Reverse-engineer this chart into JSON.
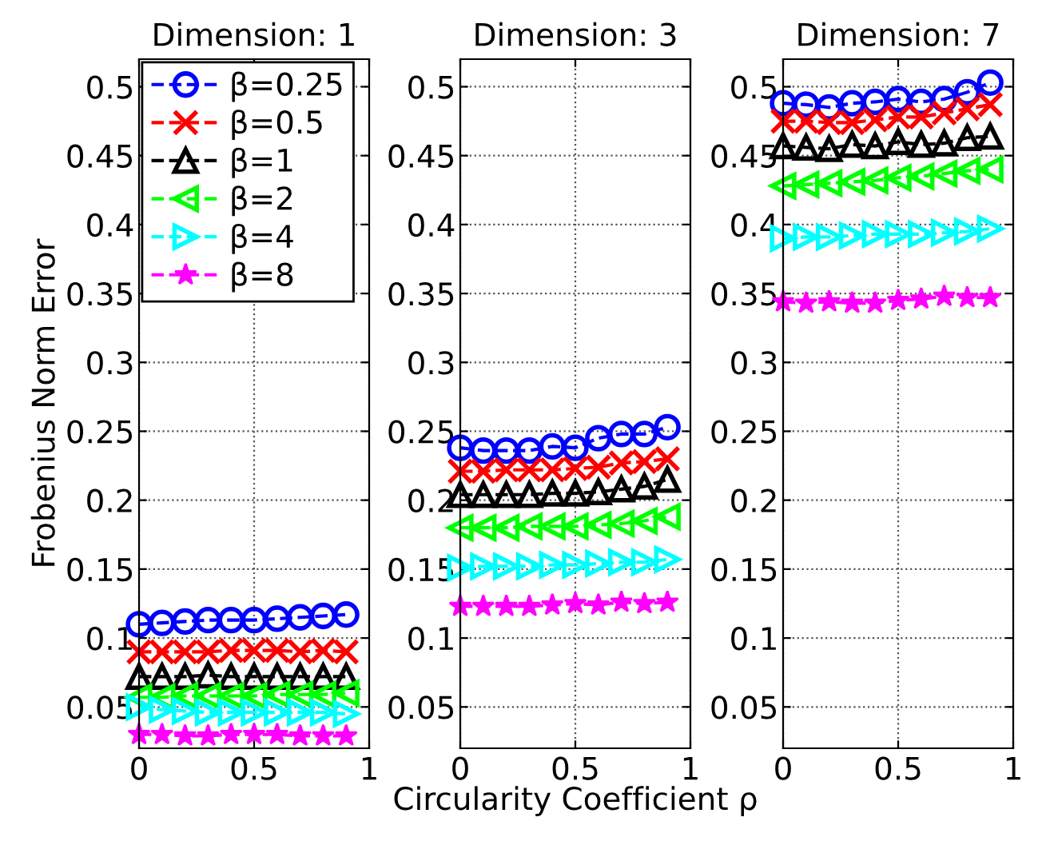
{
  "chart_data": [
    {
      "type": "line",
      "title": "Dimension: 1",
      "ylabel": "Frobenius Norm Error",
      "xlim": [
        0,
        1
      ],
      "xticks": [
        0,
        0.5,
        1
      ],
      "ylim": [
        0.02,
        0.52
      ],
      "yticks": [
        0.05,
        0.1,
        0.15,
        0.2,
        0.25,
        0.3,
        0.35,
        0.4,
        0.45,
        0.5
      ],
      "grid": true,
      "legend": "top left",
      "line_style": "dashed",
      "x": [
        0,
        0.1,
        0.2,
        0.3,
        0.4,
        0.5,
        0.6,
        0.7,
        0.8,
        0.9
      ],
      "series": [
        {
          "name": "β=0.25",
          "color": "#0000ff",
          "marker": "circle",
          "values": [
            0.11,
            0.111,
            0.112,
            0.113,
            0.113,
            0.113,
            0.114,
            0.115,
            0.116,
            0.117
          ]
        },
        {
          "name": "β=0.5",
          "color": "#ff0000",
          "marker": "cross",
          "values": [
            0.09,
            0.09,
            0.09,
            0.09,
            0.091,
            0.091,
            0.091,
            0.09,
            0.091,
            0.09
          ]
        },
        {
          "name": "β=1",
          "color": "#000000",
          "marker": "triangle",
          "values": [
            0.072,
            0.072,
            0.072,
            0.073,
            0.072,
            0.072,
            0.072,
            0.072,
            0.072,
            0.072
          ]
        },
        {
          "name": "β=2",
          "color": "#00ff00",
          "marker": "triangle-left",
          "values": [
            0.057,
            0.057,
            0.058,
            0.058,
            0.058,
            0.058,
            0.059,
            0.059,
            0.059,
            0.06
          ]
        },
        {
          "name": "β=4",
          "color": "#00ffff",
          "marker": "triangle-right",
          "values": [
            0.05,
            0.048,
            0.047,
            0.046,
            0.046,
            0.046,
            0.046,
            0.046,
            0.046,
            0.045
          ]
        },
        {
          "name": "β=8",
          "color": "#ff00ff",
          "marker": "star",
          "values": [
            0.03,
            0.03,
            0.029,
            0.029,
            0.03,
            0.03,
            0.03,
            0.029,
            0.029,
            0.029
          ]
        }
      ]
    },
    {
      "type": "line",
      "title": "Dimension: 3",
      "xlabel": "Circularity Coefficient ρ",
      "xlim": [
        0,
        1
      ],
      "xticks": [
        0,
        0.5,
        1
      ],
      "ylim": [
        0.02,
        0.52
      ],
      "yticks": [
        0.05,
        0.1,
        0.15,
        0.2,
        0.25,
        0.3,
        0.35,
        0.4,
        0.45,
        0.5
      ],
      "grid": true,
      "line_style": "dashed",
      "x": [
        0,
        0.1,
        0.2,
        0.3,
        0.4,
        0.5,
        0.6,
        0.7,
        0.8,
        0.9
      ],
      "series": [
        {
          "color": "#0000ff",
          "marker": "circle",
          "values": [
            0.238,
            0.236,
            0.236,
            0.236,
            0.239,
            0.238,
            0.245,
            0.248,
            0.248,
            0.253
          ]
        },
        {
          "color": "#ff0000",
          "marker": "cross",
          "values": [
            0.221,
            0.221,
            0.222,
            0.222,
            0.222,
            0.223,
            0.224,
            0.227,
            0.228,
            0.23
          ]
        },
        {
          "color": "#000000",
          "marker": "triangle",
          "values": [
            0.204,
            0.204,
            0.204,
            0.204,
            0.205,
            0.205,
            0.206,
            0.208,
            0.21,
            0.215
          ]
        },
        {
          "color": "#00ff00",
          "marker": "triangle-left",
          "values": [
            0.18,
            0.18,
            0.18,
            0.181,
            0.181,
            0.181,
            0.182,
            0.183,
            0.185,
            0.188
          ]
        },
        {
          "color": "#00ffff",
          "marker": "triangle-right",
          "values": [
            0.151,
            0.152,
            0.152,
            0.152,
            0.153,
            0.153,
            0.154,
            0.155,
            0.155,
            0.157
          ]
        },
        {
          "color": "#ff00ff",
          "marker": "star",
          "values": [
            0.123,
            0.123,
            0.123,
            0.123,
            0.124,
            0.125,
            0.124,
            0.126,
            0.125,
            0.126
          ]
        }
      ]
    },
    {
      "type": "line",
      "title": "Dimension: 7",
      "xlim": [
        0,
        1
      ],
      "xticks": [
        0,
        0.5,
        1
      ],
      "ylim": [
        0.02,
        0.52
      ],
      "yticks": [
        0.05,
        0.1,
        0.15,
        0.2,
        0.25,
        0.3,
        0.35,
        0.4,
        0.45,
        0.5
      ],
      "grid": true,
      "line_style": "dashed",
      "x": [
        0,
        0.1,
        0.2,
        0.3,
        0.4,
        0.5,
        0.6,
        0.7,
        0.8,
        0.9
      ],
      "series": [
        {
          "color": "#0000ff",
          "marker": "circle",
          "values": [
            0.488,
            0.487,
            0.485,
            0.488,
            0.489,
            0.491,
            0.489,
            0.491,
            0.496,
            0.503
          ]
        },
        {
          "color": "#ff0000",
          "marker": "cross",
          "values": [
            0.475,
            0.475,
            0.474,
            0.474,
            0.476,
            0.478,
            0.478,
            0.481,
            0.484,
            0.487
          ]
        },
        {
          "color": "#000000",
          "marker": "triangle",
          "values": [
            0.457,
            0.456,
            0.455,
            0.458,
            0.457,
            0.46,
            0.458,
            0.459,
            0.463,
            0.464
          ]
        },
        {
          "color": "#00ff00",
          "marker": "triangle-left",
          "values": [
            0.428,
            0.429,
            0.43,
            0.431,
            0.432,
            0.434,
            0.435,
            0.437,
            0.439,
            0.44
          ]
        },
        {
          "color": "#00ffff",
          "marker": "triangle-right",
          "values": [
            0.39,
            0.391,
            0.391,
            0.392,
            0.393,
            0.393,
            0.393,
            0.394,
            0.395,
            0.397
          ]
        },
        {
          "color": "#ff00ff",
          "marker": "star",
          "values": [
            0.344,
            0.343,
            0.344,
            0.343,
            0.343,
            0.345,
            0.346,
            0.348,
            0.347,
            0.347
          ]
        }
      ]
    }
  ]
}
